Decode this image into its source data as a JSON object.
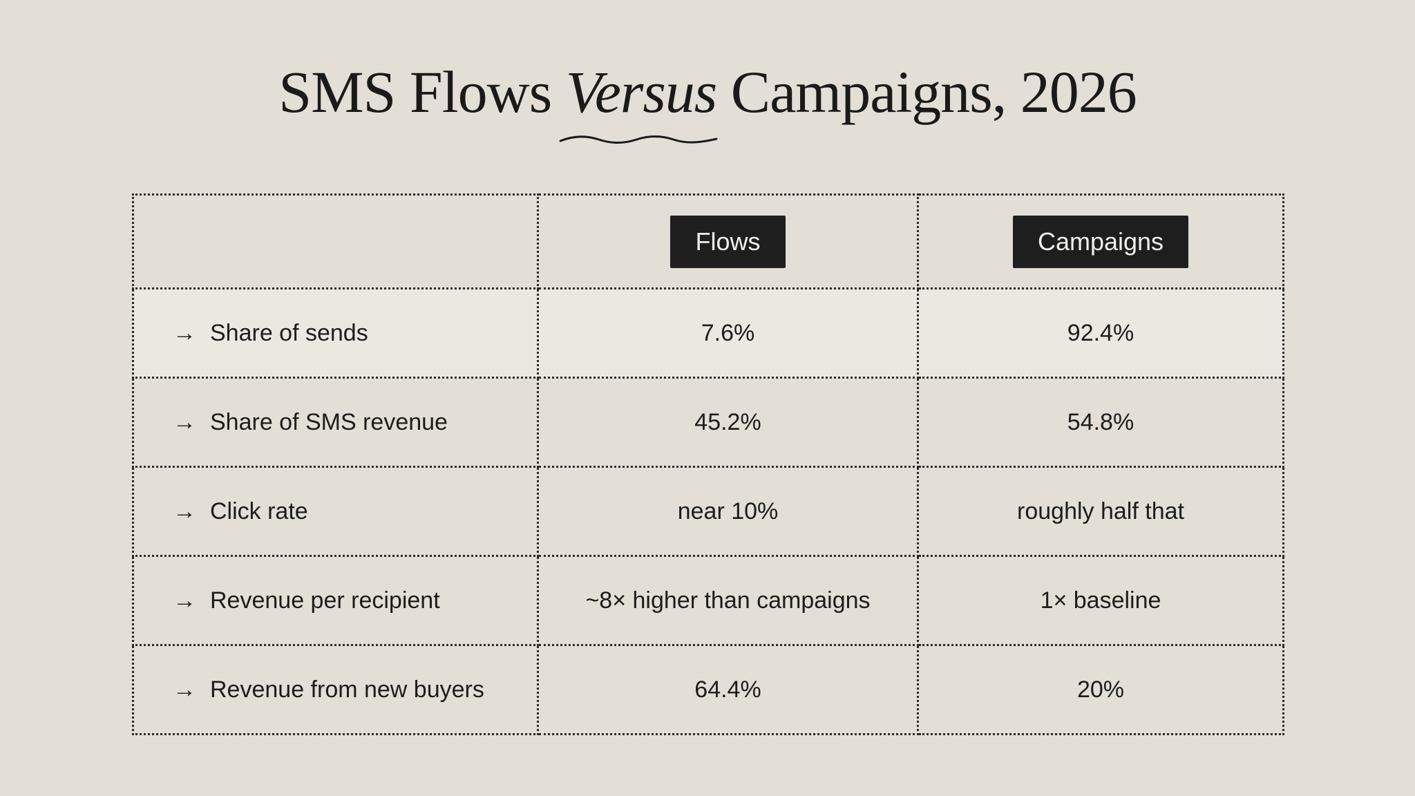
{
  "title": {
    "before": "SMS Flows ",
    "emphasis": "Versus",
    "after": " Campaigns, 2026"
  },
  "table": {
    "columns": [
      "",
      "Flows",
      "Campaigns"
    ],
    "rows": [
      {
        "metric": "Share of sends",
        "flows": "7.6%",
        "campaigns": "92.4%",
        "highlighted": true
      },
      {
        "metric": "Share of SMS revenue",
        "flows": "45.2%",
        "campaigns": "54.8%"
      },
      {
        "metric": "Click rate",
        "flows": "near 10%",
        "campaigns": "roughly half that"
      },
      {
        "metric": "Revenue per recipient",
        "flows": "~8× higher than campaigns",
        "campaigns": "1× baseline"
      },
      {
        "metric": "Revenue from new buyers",
        "flows": "64.4%",
        "campaigns": "20%"
      }
    ],
    "row_icon": "arrow-right-icon",
    "arrow_glyph": "→"
  },
  "colors": {
    "background": "#e3dfd6",
    "highlight_row": "#ebe8e2",
    "header_pill": "#1e1e1e",
    "header_pill_text": "#f2f0ec",
    "text": "#1c1c1c"
  }
}
